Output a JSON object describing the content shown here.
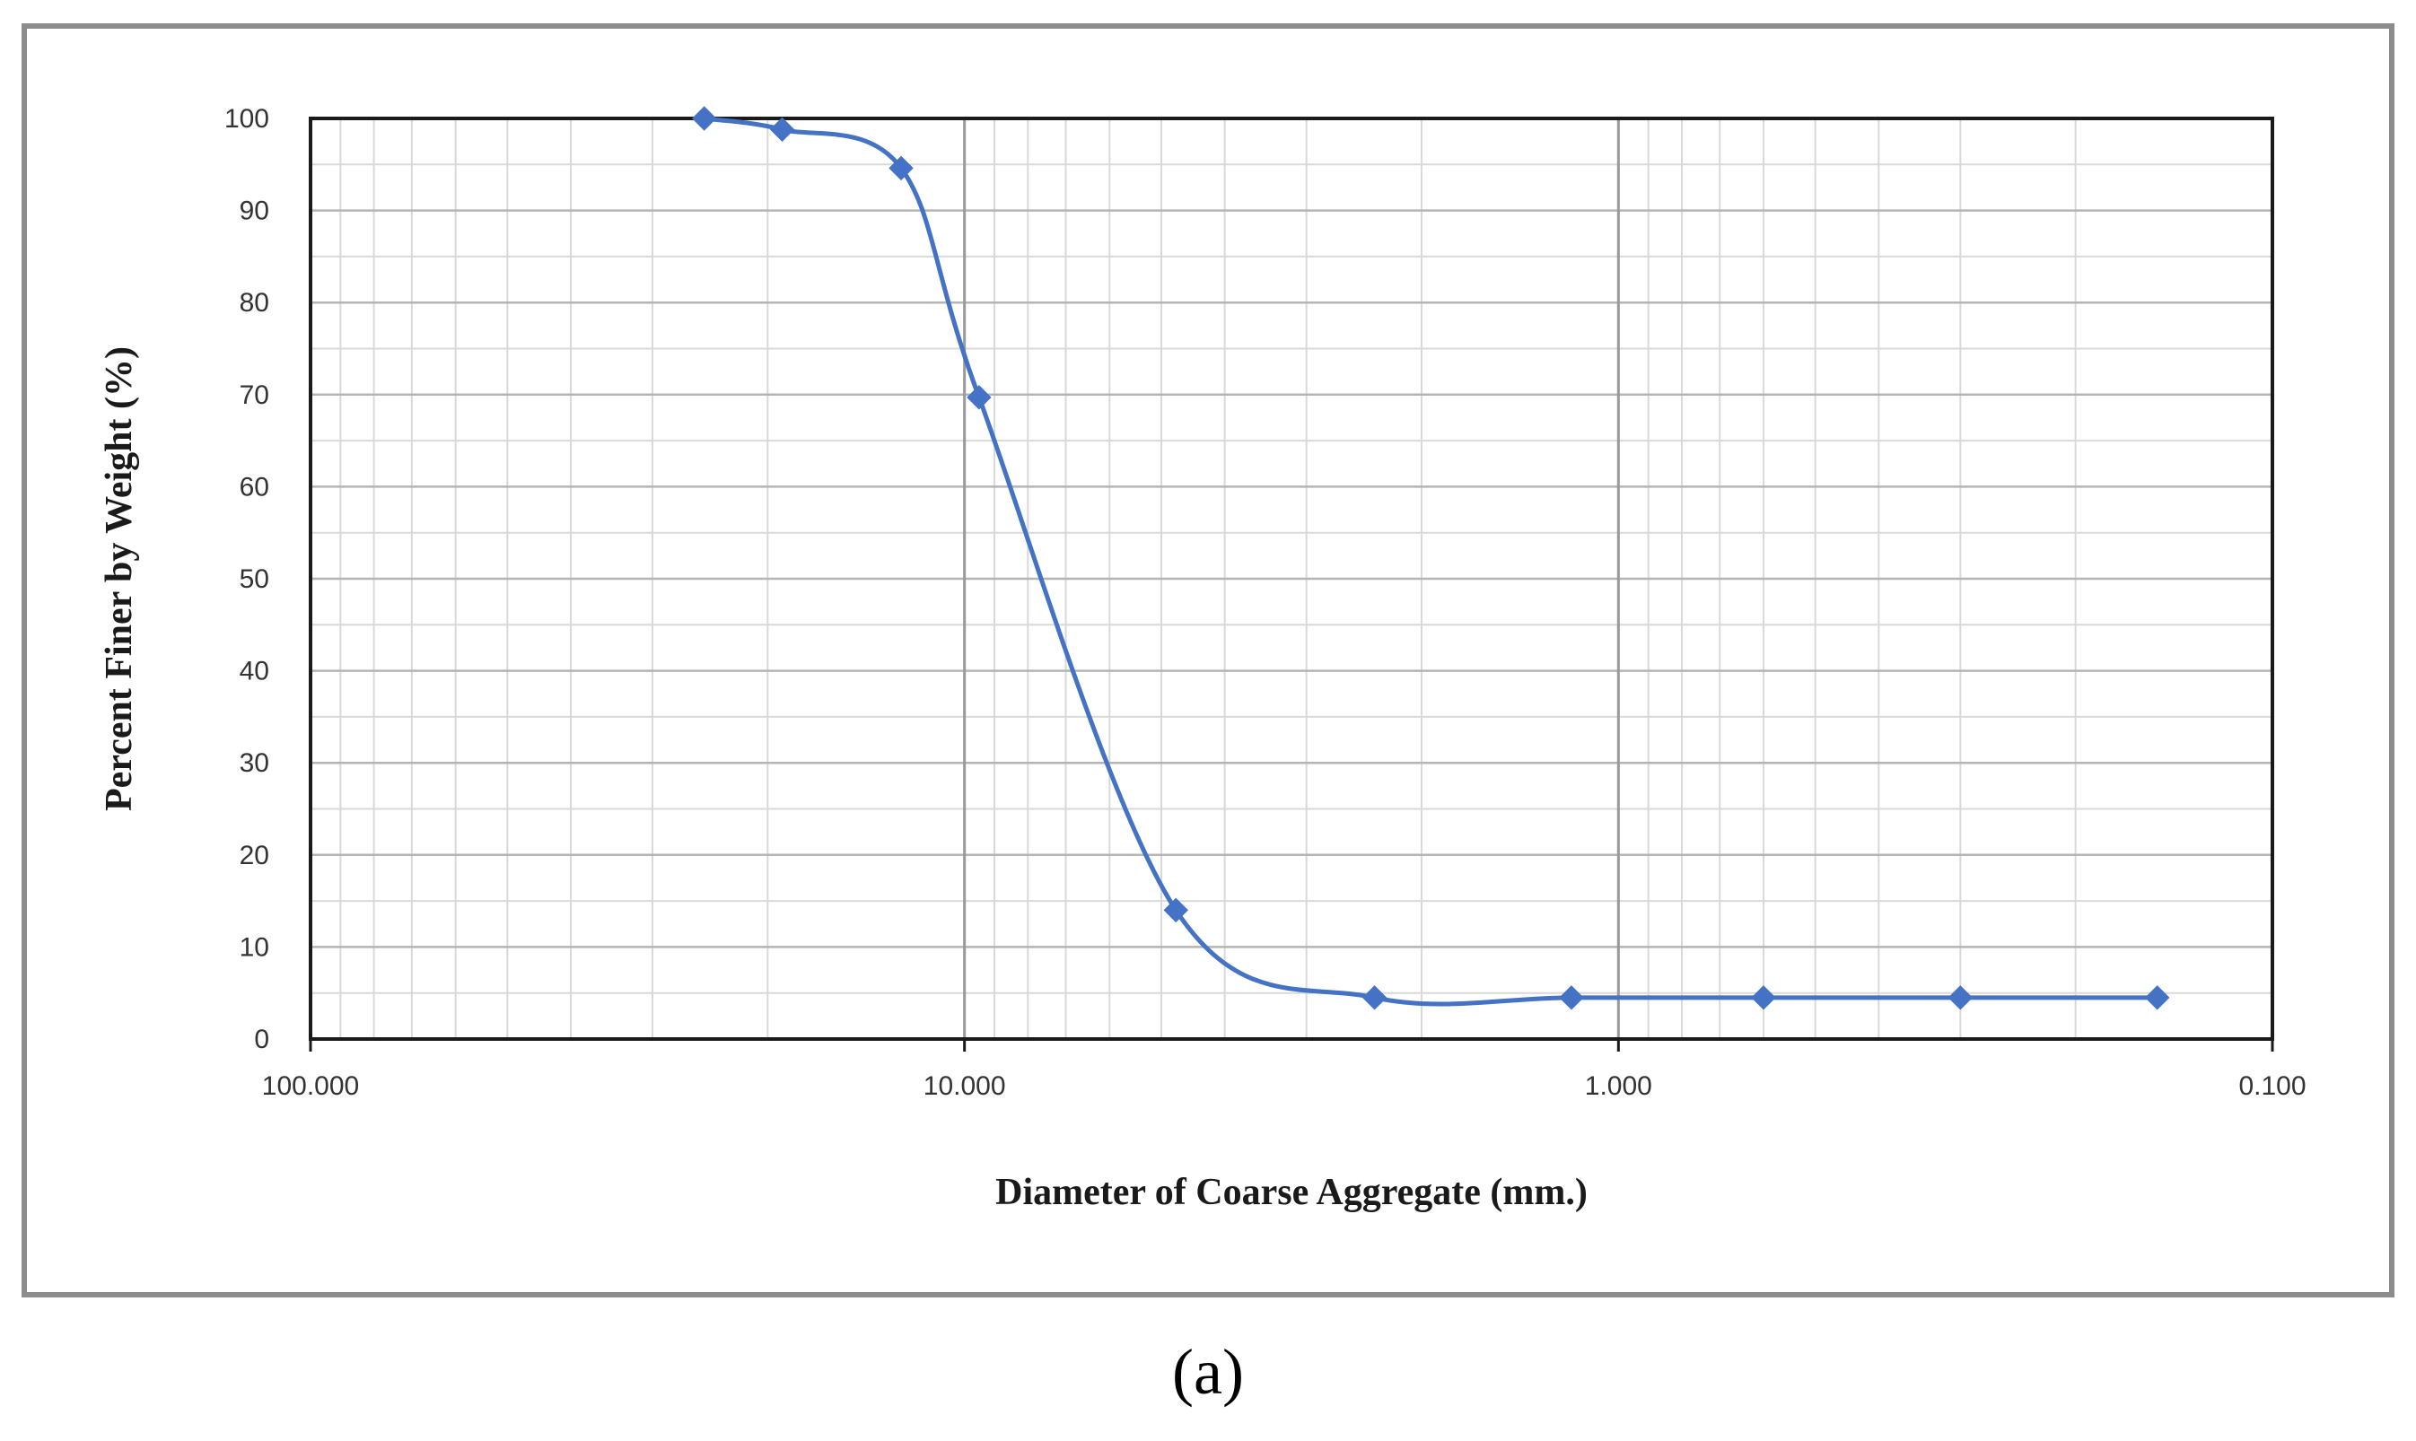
{
  "chart_data": {
    "type": "line",
    "xscale": "log",
    "x_reversed": true,
    "xlim": [
      100.0,
      0.1
    ],
    "ylim": [
      0,
      100
    ],
    "xlabel": "Diameter of Coarse Aggregate (mm.)",
    "ylabel": "Percent Finer by Weight (%)",
    "x_tick_labels": [
      "100.000",
      "10.000",
      "1.000",
      "0.100"
    ],
    "x_ticks": [
      100,
      10,
      1,
      0.1
    ],
    "y_ticks": [
      0,
      10,
      20,
      30,
      40,
      50,
      60,
      70,
      80,
      90,
      100
    ],
    "grid": true,
    "series": [
      {
        "x": [
          25.0,
          19.0,
          12.5,
          9.5,
          4.75,
          2.36,
          1.18,
          0.6,
          0.3,
          0.15
        ],
        "values": [
          100,
          98.8,
          94.6,
          69.7,
          14.0,
          4.5,
          4.5,
          4.5,
          4.5,
          4.5
        ]
      }
    ]
  },
  "caption": "(a)",
  "colors": {
    "series": "#4472c4",
    "grid": "#d9d9d9",
    "frame": "#8c8c8c"
  }
}
